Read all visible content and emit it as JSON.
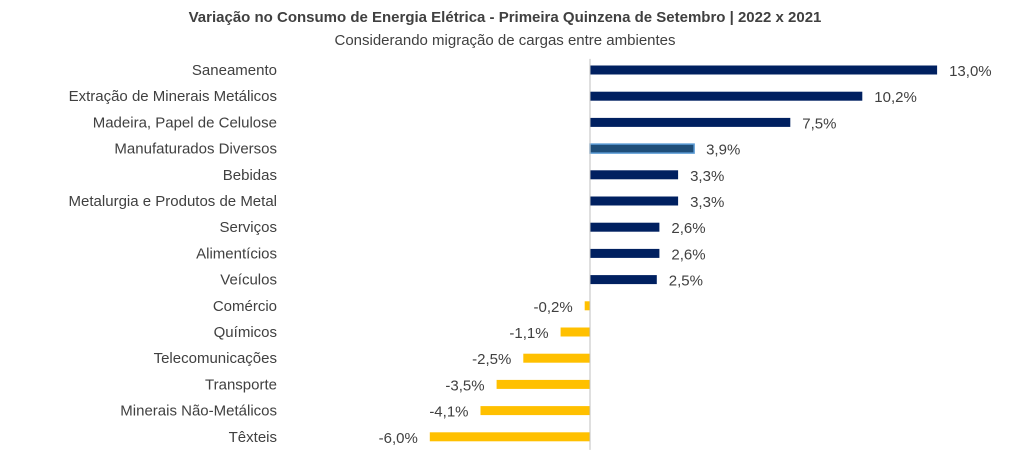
{
  "chart_data": {
    "type": "bar",
    "orientation": "horizontal",
    "title": "Variação no Consumo de Energia Elétrica - Primeira Quinzena de Setembro | 2022 x 2021",
    "subtitle": "Considerando migração de cargas entre ambientes",
    "xlabel": "",
    "ylabel": "",
    "xlim": [
      -6.0,
      13.0
    ],
    "grid": false,
    "legend": "none",
    "categories": [
      "Saneamento",
      "Extração de Minerais Metálicos",
      "Madeira, Papel de Celulose",
      "Manufaturados Diversos",
      "Bebidas",
      "Metalurgia e Produtos de Metal",
      "Serviços",
      "Alimentícios",
      "Veículos",
      "Comércio",
      "Químicos",
      "Telecomunicações",
      "Transporte",
      "Minerais Não-Metálicos",
      "Têxteis"
    ],
    "values": [
      13.0,
      10.2,
      7.5,
      3.9,
      3.3,
      3.3,
      2.6,
      2.6,
      2.5,
      -0.2,
      -1.1,
      -2.5,
      -3.5,
      -4.1,
      -6.0
    ],
    "labels": [
      "13,0%",
      "10,2%",
      "7,5%",
      "3,9%",
      "3,3%",
      "3,3%",
      "2,6%",
      "2,6%",
      "2,5%",
      "-0,2%",
      "-1,1%",
      "-2,5%",
      "-3,5%",
      "-4,1%",
      "-6,0%"
    ],
    "highlighted_category": "Manufaturados Diversos",
    "colors": {
      "positive": "#002060",
      "negative": "#FFC000",
      "highlight_fill": "#1F4E79",
      "highlight_stroke": "#5B9BD5",
      "axis": "#BFBFBF",
      "text": "#404040"
    }
  }
}
